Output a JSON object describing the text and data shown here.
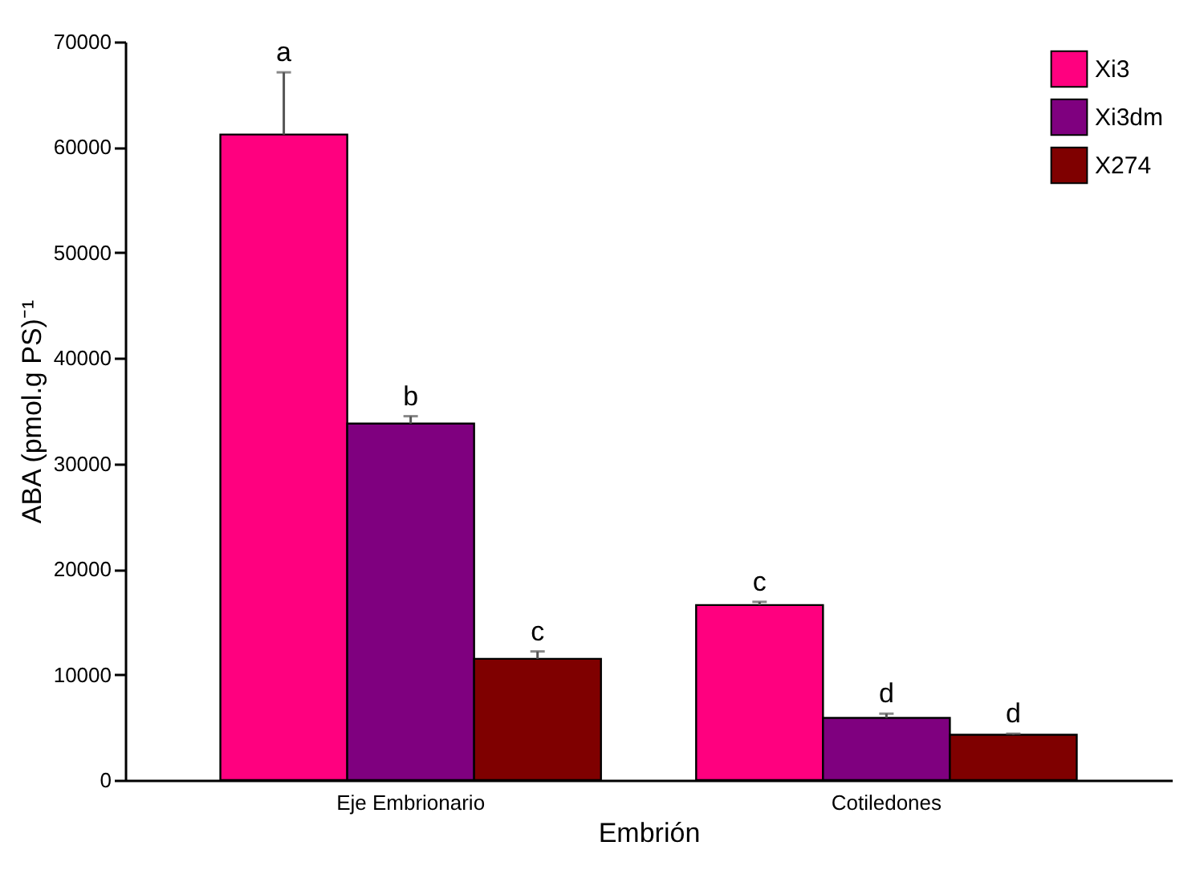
{
  "chart_data": {
    "type": "bar",
    "xlabel": "Embrión",
    "ylabel": "ABA (pmol.g PS)⁻¹",
    "categories": [
      "Eje Embrionario",
      "Cotiledones"
    ],
    "series": [
      {
        "name": "Xi3",
        "color": "#ff007f",
        "values": [
          61200,
          16600
        ],
        "errors": [
          [
            61200,
            67100
          ],
          [
            16600,
            16900
          ]
        ],
        "value_labels": [
          "a",
          "c"
        ]
      },
      {
        "name": "Xi3dm",
        "color": "#7f007f",
        "values": [
          33800,
          5900
        ],
        "errors": [
          [
            33800,
            34500
          ],
          [
            5900,
            6300
          ]
        ],
        "value_labels": [
          "b",
          "d"
        ]
      },
      {
        "name": "X274",
        "color": "#7f0000",
        "values": [
          11500,
          4300
        ],
        "errors": [
          [
            11500,
            12200
          ],
          [
            4300,
            4400
          ]
        ],
        "value_labels": [
          "c",
          "d"
        ]
      }
    ],
    "ylim": [
      0,
      70000
    ],
    "yticks": [
      0,
      10000,
      20000,
      30000,
      40000,
      50000,
      60000,
      70000
    ],
    "grid": false,
    "legend": "top right"
  }
}
